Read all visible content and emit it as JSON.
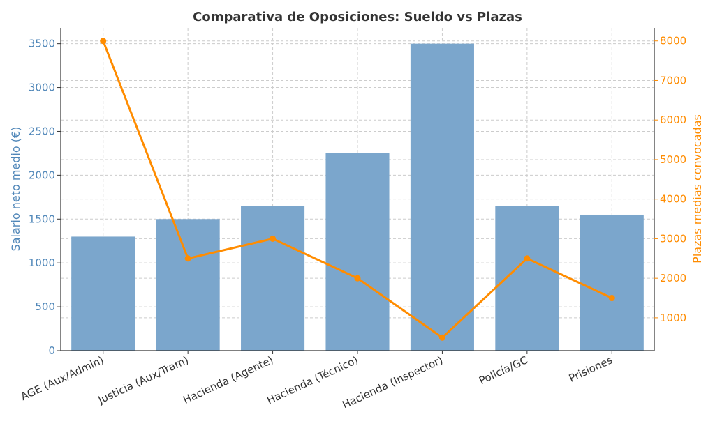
{
  "chart_data": {
    "type": "bar",
    "title": "Comparativa de Oposiciones: Sueldo vs Plazas",
    "categories": [
      "AGE (Aux/Admin)",
      "Justicia (Aux/Tram)",
      "Hacienda (Agente)",
      "Hacienda (Técnico)",
      "Hacienda (Inspector)",
      "Policía/GC",
      "Prisiones"
    ],
    "series": [
      {
        "kind": "bar",
        "axis": "left",
        "color": "#7ba6cc",
        "values": [
          1300,
          1500,
          1650,
          2250,
          3500,
          1650,
          1550
        ]
      },
      {
        "kind": "line",
        "axis": "right",
        "color": "#ff8c00",
        "values": [
          8000,
          2500,
          3000,
          2000,
          500,
          2500,
          1500
        ]
      }
    ],
    "ylabel": "Salario neto medio (€)",
    "ylabel_color": "#4f86b8",
    "y2label": "Plazas medias convocadas",
    "y2label_color": "#ff8c00",
    "ylim": [
      0,
      3680
    ],
    "y2lim": [
      170,
      8330
    ],
    "yticks": [
      0,
      500,
      1000,
      1500,
      2000,
      2500,
      3000,
      3500
    ],
    "y2ticks": [
      1000,
      2000,
      3000,
      4000,
      5000,
      6000,
      7000,
      8000
    ],
    "grid": true
  }
}
